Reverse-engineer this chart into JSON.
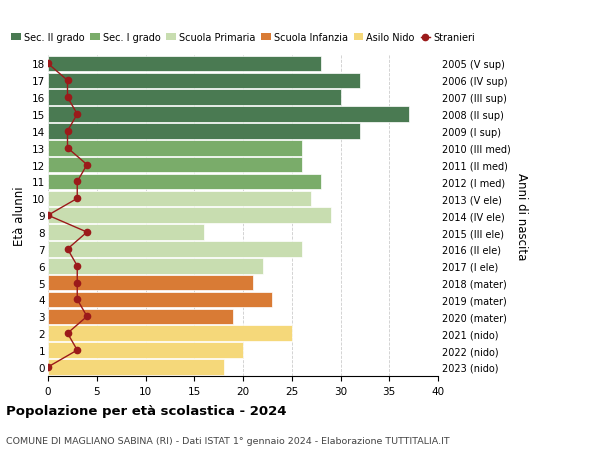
{
  "ages": [
    18,
    17,
    16,
    15,
    14,
    13,
    12,
    11,
    10,
    9,
    8,
    7,
    6,
    5,
    4,
    3,
    2,
    1,
    0
  ],
  "bar_values": [
    28,
    32,
    30,
    37,
    32,
    26,
    26,
    28,
    27,
    29,
    16,
    26,
    22,
    21,
    23,
    19,
    25,
    20,
    18
  ],
  "bar_colors": [
    "#4a7a52",
    "#4a7a52",
    "#4a7a52",
    "#4a7a52",
    "#4a7a52",
    "#7aac6a",
    "#7aac6a",
    "#7aac6a",
    "#c8ddb0",
    "#c8ddb0",
    "#c8ddb0",
    "#c8ddb0",
    "#c8ddb0",
    "#d97b35",
    "#d97b35",
    "#d97b35",
    "#f5d87a",
    "#f5d87a",
    "#f5d87a"
  ],
  "stranieri": [
    0,
    2,
    2,
    3,
    2,
    2,
    4,
    3,
    3,
    0,
    4,
    2,
    3,
    3,
    3,
    4,
    2,
    3,
    0
  ],
  "right_labels": [
    "2005 (V sup)",
    "2006 (IV sup)",
    "2007 (III sup)",
    "2008 (II sup)",
    "2009 (I sup)",
    "2010 (III med)",
    "2011 (II med)",
    "2012 (I med)",
    "2013 (V ele)",
    "2014 (IV ele)",
    "2015 (III ele)",
    "2016 (II ele)",
    "2017 (I ele)",
    "2018 (mater)",
    "2019 (mater)",
    "2020 (mater)",
    "2021 (nido)",
    "2022 (nido)",
    "2023 (nido)"
  ],
  "legend_labels": [
    "Sec. II grado",
    "Sec. I grado",
    "Scuola Primaria",
    "Scuola Infanzia",
    "Asilo Nido",
    "Stranieri"
  ],
  "legend_colors": [
    "#4a7a52",
    "#7aac6a",
    "#c8ddb0",
    "#d97b35",
    "#f5d87a",
    "#9b1a1a"
  ],
  "title_bold": "Popolazione per età scolastica - 2024",
  "subtitle": "COMUNE DI MAGLIANO SABINA (RI) - Dati ISTAT 1° gennaio 2024 - Elaborazione TUTTITALIA.IT",
  "ylabel_left": "Età alunni",
  "ylabel_right": "Anni di nascita",
  "xlim": [
    0,
    40
  ],
  "xticks": [
    0,
    5,
    10,
    15,
    20,
    25,
    30,
    35,
    40
  ],
  "stranieri_color": "#9b1a1a",
  "bar_height": 0.92,
  "background_color": "#ffffff",
  "grid_color": "#cccccc"
}
